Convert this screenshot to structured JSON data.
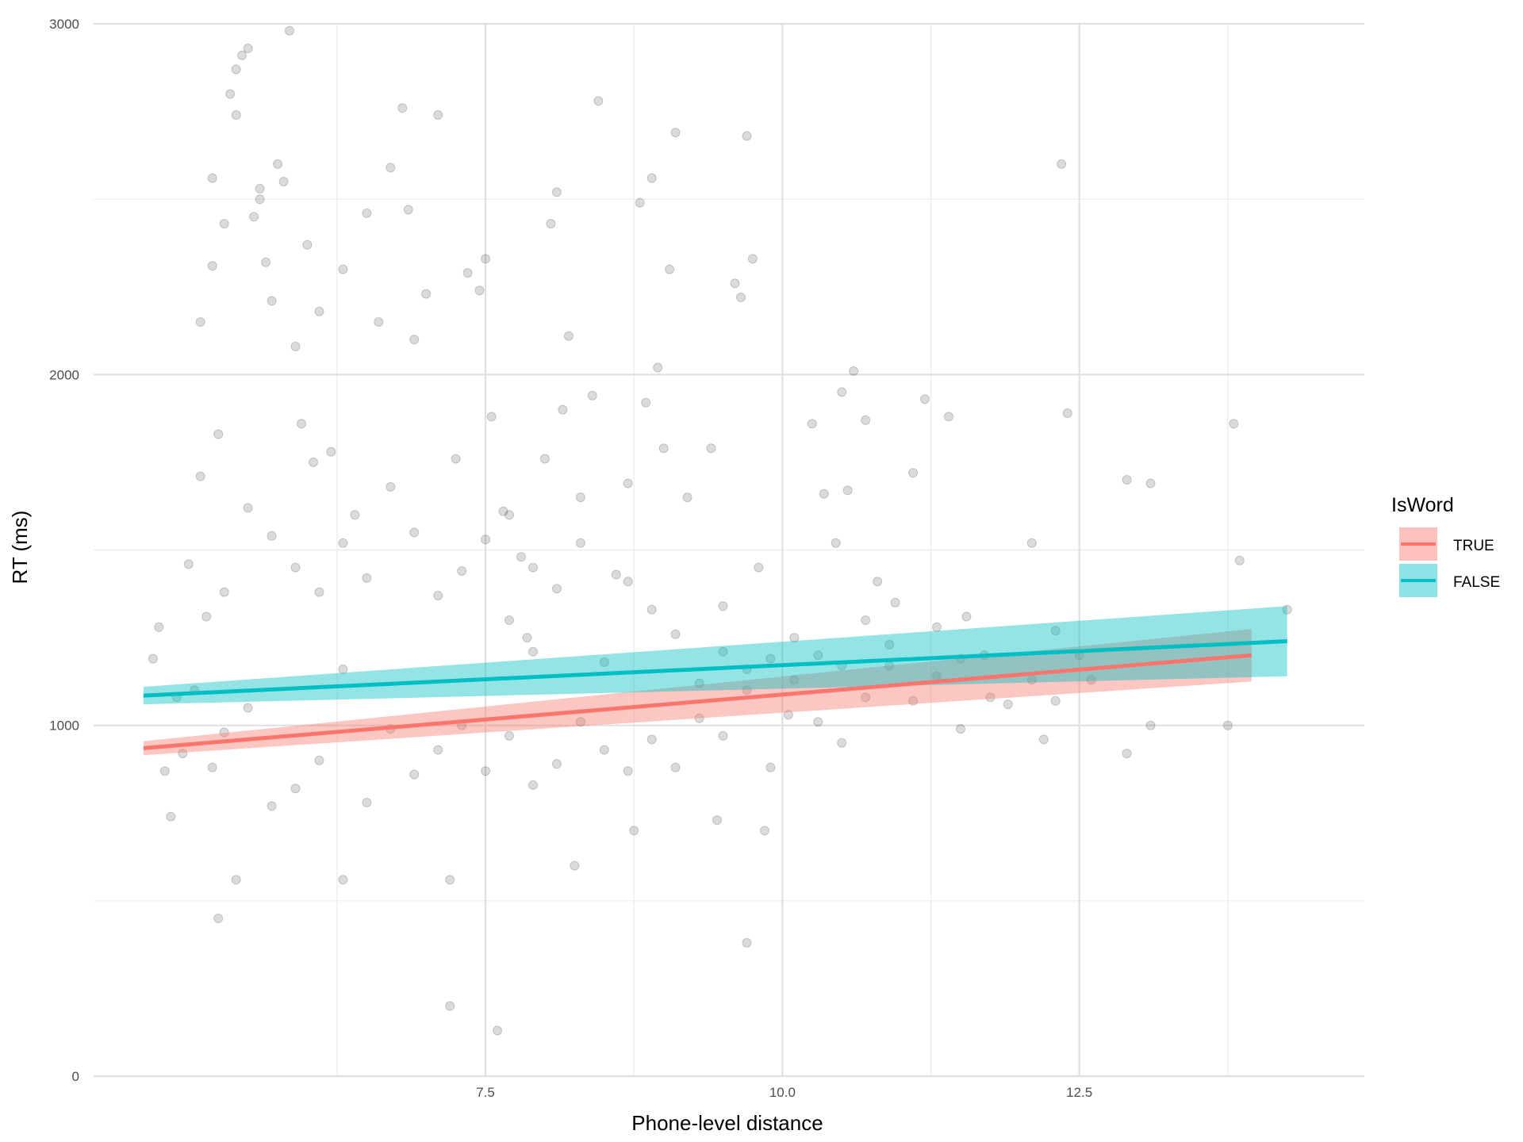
{
  "chart_data": {
    "type": "scatter",
    "title": "",
    "xlabel": "Phone-level distance",
    "ylabel": "RT (ms)",
    "xlim": [
      4.2,
      14.9
    ],
    "ylim": [
      0,
      3000
    ],
    "x_ticks": [
      7.5,
      10.0,
      12.5
    ],
    "x_tick_labels": [
      "7.5",
      "10.0",
      "12.5"
    ],
    "y_ticks": [
      0,
      1000,
      2000,
      3000
    ],
    "y_tick_labels": [
      "0",
      "1000",
      "2000",
      "3000"
    ],
    "grid": true,
    "legend": {
      "title": "IsWord",
      "placement": "right",
      "entries": [
        {
          "label": "TRUE",
          "color": "#F8766D"
        },
        {
          "label": "FALSE",
          "color": "#00BFC4"
        }
      ]
    },
    "points_color": "#000000",
    "fits": [
      {
        "name": "TRUE",
        "color": "#F8766D",
        "x": [
          4.62,
          13.95
        ],
        "y": [
          935,
          1200
        ],
        "ci_low": [
          915,
          1125
        ],
        "ci_high": [
          955,
          1275
        ]
      },
      {
        "name": "FALSE",
        "color": "#00BFC4",
        "x": [
          4.62,
          14.25
        ],
        "y": [
          1085,
          1240
        ],
        "ci_low": [
          1060,
          1140
        ],
        "ci_high": [
          1110,
          1340
        ]
      }
    ],
    "points": [
      [
        4.7,
        1190
      ],
      [
        4.75,
        1280
      ],
      [
        4.8,
        870
      ],
      [
        4.85,
        740
      ],
      [
        4.9,
        1080
      ],
      [
        4.95,
        920
      ],
      [
        5.0,
        1460
      ],
      [
        5.05,
        1100
      ],
      [
        5.1,
        2150
      ],
      [
        5.1,
        1710
      ],
      [
        5.15,
        1310
      ],
      [
        5.2,
        2310
      ],
      [
        5.2,
        2560
      ],
      [
        5.25,
        1830
      ],
      [
        5.25,
        450
      ],
      [
        5.3,
        2430
      ],
      [
        5.3,
        980
      ],
      [
        5.35,
        2800
      ],
      [
        5.4,
        2870
      ],
      [
        5.4,
        2740
      ],
      [
        5.45,
        2910
      ],
      [
        5.5,
        2930
      ],
      [
        5.55,
        2450
      ],
      [
        5.6,
        2530
      ],
      [
        5.6,
        2500
      ],
      [
        5.65,
        2320
      ],
      [
        5.7,
        2210
      ],
      [
        5.75,
        2600
      ],
      [
        5.8,
        2550
      ],
      [
        5.85,
        2980
      ],
      [
        5.9,
        2080
      ],
      [
        5.95,
        1860
      ],
      [
        6.0,
        2370
      ],
      [
        6.05,
        1750
      ],
      [
        6.1,
        2180
      ],
      [
        6.2,
        1780
      ],
      [
        6.3,
        2300
      ],
      [
        6.4,
        1600
      ],
      [
        6.5,
        2460
      ],
      [
        6.6,
        2150
      ],
      [
        6.7,
        2590
      ],
      [
        6.8,
        2760
      ],
      [
        6.85,
        2470
      ],
      [
        6.9,
        2100
      ],
      [
        7.0,
        2230
      ],
      [
        7.1,
        2740
      ],
      [
        7.2,
        200
      ],
      [
        7.25,
        1760
      ],
      [
        7.35,
        2290
      ],
      [
        7.45,
        2240
      ],
      [
        7.5,
        2330
      ],
      [
        7.55,
        1880
      ],
      [
        7.6,
        130
      ],
      [
        7.65,
        1610
      ],
      [
        7.7,
        1600
      ],
      [
        7.8,
        1480
      ],
      [
        7.85,
        1250
      ],
      [
        7.9,
        1210
      ],
      [
        8.0,
        1760
      ],
      [
        8.05,
        2430
      ],
      [
        8.1,
        2520
      ],
      [
        8.15,
        1900
      ],
      [
        8.2,
        2110
      ],
      [
        8.3,
        1650
      ],
      [
        8.4,
        1940
      ],
      [
        8.45,
        2780
      ],
      [
        8.6,
        1430
      ],
      [
        8.7,
        1690
      ],
      [
        8.8,
        2490
      ],
      [
        8.85,
        1920
      ],
      [
        8.9,
        2560
      ],
      [
        8.95,
        2020
      ],
      [
        9.0,
        1790
      ],
      [
        9.05,
        2300
      ],
      [
        9.1,
        2690
      ],
      [
        9.2,
        1650
      ],
      [
        9.4,
        1790
      ],
      [
        9.5,
        1340
      ],
      [
        9.6,
        2260
      ],
      [
        9.65,
        2220
      ],
      [
        9.7,
        2680
      ],
      [
        9.75,
        2330
      ],
      [
        9.7,
        380
      ],
      [
        9.8,
        1450
      ],
      [
        9.9,
        1190
      ],
      [
        10.25,
        1860
      ],
      [
        10.35,
        1660
      ],
      [
        10.45,
        1520
      ],
      [
        10.5,
        1950
      ],
      [
        10.55,
        1670
      ],
      [
        10.6,
        2010
      ],
      [
        10.7,
        1870
      ],
      [
        10.8,
        1410
      ],
      [
        10.95,
        1350
      ],
      [
        11.1,
        1720
      ],
      [
        11.2,
        1930
      ],
      [
        11.4,
        1880
      ],
      [
        11.55,
        1310
      ],
      [
        12.1,
        1520
      ],
      [
        12.3,
        1270
      ],
      [
        12.4,
        1890
      ],
      [
        12.35,
        2600
      ],
      [
        12.2,
        960
      ],
      [
        12.6,
        1130
      ],
      [
        12.9,
        1700
      ],
      [
        12.9,
        920
      ],
      [
        13.1,
        1690
      ],
      [
        13.1,
        1000
      ],
      [
        13.75,
        1000
      ],
      [
        13.8,
        1860
      ],
      [
        13.85,
        1470
      ],
      [
        14.25,
        1330
      ],
      [
        11.75,
        1080
      ],
      [
        10.05,
        1030
      ],
      [
        9.85,
        700
      ],
      [
        9.45,
        730
      ],
      [
        8.75,
        700
      ],
      [
        8.25,
        600
      ],
      [
        7.2,
        560
      ],
      [
        6.3,
        560
      ],
      [
        5.4,
        560
      ],
      [
        5.2,
        880
      ],
      [
        5.5,
        1050
      ],
      [
        5.7,
        770
      ],
      [
        5.9,
        820
      ],
      [
        6.1,
        900
      ],
      [
        6.3,
        1160
      ],
      [
        6.5,
        780
      ],
      [
        6.7,
        990
      ],
      [
        6.9,
        860
      ],
      [
        7.1,
        930
      ],
      [
        7.3,
        1000
      ],
      [
        7.5,
        870
      ],
      [
        7.7,
        970
      ],
      [
        7.9,
        830
      ],
      [
        8.1,
        890
      ],
      [
        8.3,
        1010
      ],
      [
        8.5,
        930
      ],
      [
        8.7,
        870
      ],
      [
        8.9,
        960
      ],
      [
        9.1,
        880
      ],
      [
        9.3,
        1020
      ],
      [
        9.5,
        970
      ],
      [
        9.7,
        1100
      ],
      [
        9.9,
        880
      ],
      [
        10.1,
        1130
      ],
      [
        10.3,
        1010
      ],
      [
        10.5,
        950
      ],
      [
        10.7,
        1080
      ],
      [
        10.9,
        1170
      ],
      [
        11.1,
        1070
      ],
      [
        11.3,
        1140
      ],
      [
        11.5,
        990
      ],
      [
        11.7,
        1200
      ],
      [
        11.9,
        1060
      ],
      [
        12.1,
        1130
      ],
      [
        12.3,
        1070
      ],
      [
        12.5,
        1200
      ],
      [
        5.3,
        1380
      ],
      [
        5.5,
        1620
      ],
      [
        5.7,
        1540
      ],
      [
        5.9,
        1450
      ],
      [
        6.1,
        1380
      ],
      [
        6.3,
        1520
      ],
      [
        6.5,
        1420
      ],
      [
        6.7,
        1680
      ],
      [
        6.9,
        1550
      ],
      [
        7.1,
        1370
      ],
      [
        7.3,
        1440
      ],
      [
        7.5,
        1530
      ],
      [
        7.7,
        1300
      ],
      [
        7.9,
        1450
      ],
      [
        8.1,
        1390
      ],
      [
        8.3,
        1520
      ],
      [
        8.5,
        1180
      ],
      [
        8.7,
        1410
      ],
      [
        8.9,
        1330
      ],
      [
        9.1,
        1260
      ],
      [
        9.3,
        1120
      ],
      [
        9.5,
        1210
      ],
      [
        9.7,
        1160
      ],
      [
        10.1,
        1250
      ],
      [
        10.3,
        1200
      ],
      [
        10.5,
        1170
      ],
      [
        10.7,
        1300
      ],
      [
        10.9,
        1230
      ],
      [
        11.3,
        1280
      ],
      [
        11.5,
        1190
      ]
    ]
  }
}
